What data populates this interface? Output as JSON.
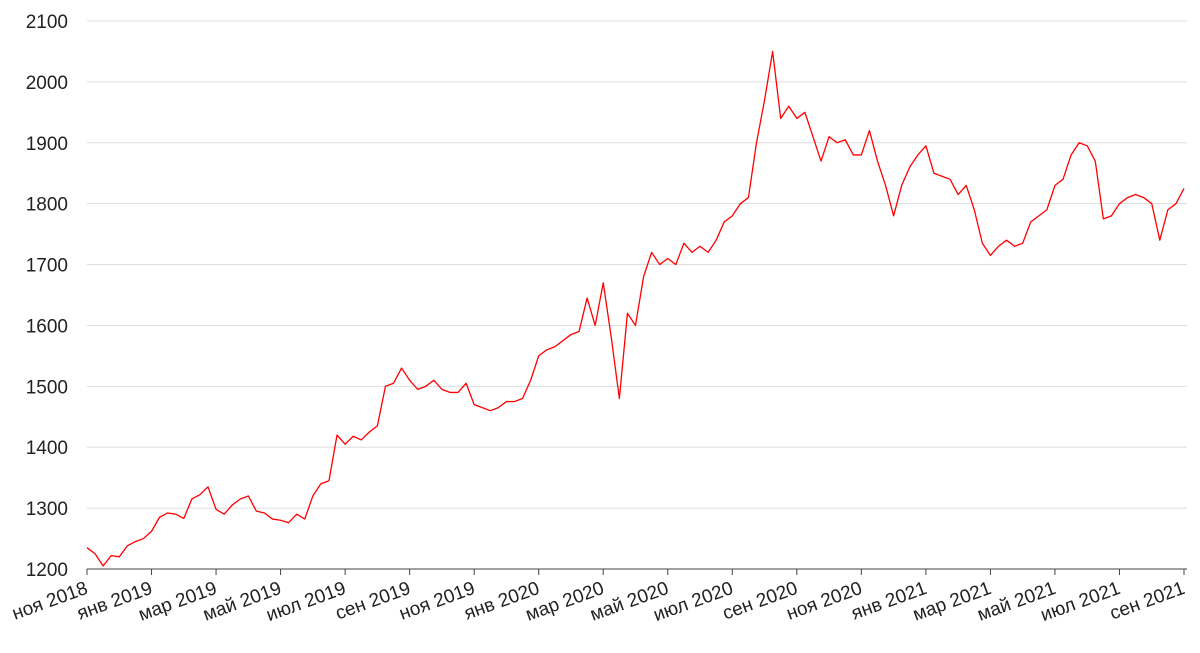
{
  "chart_data": {
    "type": "line",
    "color": "#ff0000",
    "grid": true,
    "ylim": [
      1200,
      2100
    ],
    "yticks": [
      1200,
      1300,
      1400,
      1500,
      1600,
      1700,
      1800,
      1900,
      2000,
      2100
    ],
    "categories": [
      "ноя 2018",
      null,
      null,
      null,
      null,
      null,
      null,
      null,
      "янв 2019",
      null,
      null,
      null,
      null,
      null,
      null,
      null,
      "мар 2019",
      null,
      null,
      null,
      null,
      null,
      null,
      null,
      "май 2019",
      null,
      null,
      null,
      null,
      null,
      null,
      null,
      "июл 2019",
      null,
      null,
      null,
      null,
      null,
      null,
      null,
      "сен 2019",
      null,
      null,
      null,
      null,
      null,
      null,
      null,
      "ноя 2019",
      null,
      null,
      null,
      null,
      null,
      null,
      null,
      "янв 2020",
      null,
      null,
      null,
      null,
      null,
      null,
      null,
      "мар 2020",
      null,
      null,
      null,
      null,
      null,
      null,
      null,
      "май 2020",
      null,
      null,
      null,
      null,
      null,
      null,
      null,
      "июл 2020",
      null,
      null,
      null,
      null,
      null,
      null,
      null,
      "сен 2020",
      null,
      null,
      null,
      null,
      null,
      null,
      null,
      "ноя 2020",
      null,
      null,
      null,
      null,
      null,
      null,
      null,
      "янв 2021",
      null,
      null,
      null,
      null,
      null,
      null,
      null,
      "мар 2021",
      null,
      null,
      null,
      null,
      null,
      null,
      null,
      "май 2021",
      null,
      null,
      null,
      null,
      null,
      null,
      null,
      "июл 2021",
      null,
      null,
      null,
      null,
      null,
      null,
      null,
      "сен 2021"
    ],
    "values": [
      1235,
      1225,
      1205,
      1222,
      1220,
      1238,
      1245,
      1250,
      1262,
      1285,
      1292,
      1290,
      1283,
      1315,
      1322,
      1335,
      1298,
      1290,
      1305,
      1315,
      1320,
      1295,
      1292,
      1282,
      1280,
      1276,
      1290,
      1282,
      1320,
      1340,
      1345,
      1420,
      1405,
      1418,
      1412,
      1425,
      1435,
      1500,
      1505,
      1530,
      1510,
      1495,
      1500,
      1510,
      1495,
      1490,
      1490,
      1505,
      1470,
      1465,
      1460,
      1465,
      1475,
      1475,
      1480,
      1510,
      1550,
      1560,
      1565,
      1575,
      1585,
      1590,
      1645,
      1600,
      1670,
      1580,
      1480,
      1620,
      1600,
      1680,
      1720,
      1700,
      1710,
      1700,
      1735,
      1720,
      1730,
      1720,
      1740,
      1770,
      1780,
      1800,
      1810,
      1900,
      1970,
      2050,
      1940,
      1960,
      1940,
      1950,
      1910,
      1870,
      1910,
      1900,
      1905,
      1880,
      1880,
      1920,
      1870,
      1830,
      1780,
      1830,
      1860,
      1880,
      1895,
      1850,
      1845,
      1840,
      1815,
      1830,
      1790,
      1735,
      1715,
      1730,
      1740,
      1730,
      1735,
      1770,
      1780,
      1790,
      1830,
      1840,
      1880,
      1900,
      1895,
      1870,
      1775,
      1780,
      1800,
      1810,
      1815,
      1810,
      1800,
      1740,
      1790,
      1800,
      1825
    ]
  }
}
